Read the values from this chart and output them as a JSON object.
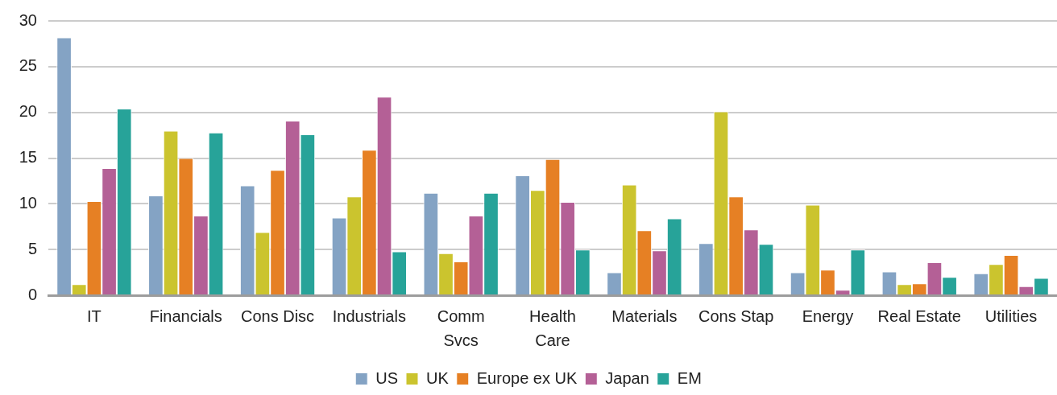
{
  "chart_data": {
    "type": "bar",
    "categories": [
      "IT",
      "Financials",
      "Cons Disc",
      "Industrials",
      "Comm\nSvcs",
      "Health\nCare",
      "Materials",
      "Cons Stap",
      "Energy",
      "Real Estate",
      "Utilities"
    ],
    "series": [
      {
        "name": "US",
        "color": "#84a3c4",
        "values": [
          28.2,
          10.9,
          12.0,
          8.5,
          11.2,
          13.1,
          2.5,
          5.7,
          2.5,
          2.6,
          2.4
        ]
      },
      {
        "name": "UK",
        "color": "#cbc42e",
        "values": [
          1.2,
          18.0,
          6.9,
          10.8,
          4.6,
          11.5,
          12.1,
          20.1,
          9.9,
          1.2,
          3.4
        ]
      },
      {
        "name": "Europe ex UK",
        "color": "#e68024",
        "values": [
          10.3,
          15.0,
          13.7,
          15.9,
          3.7,
          14.9,
          7.1,
          10.8,
          2.8,
          1.3,
          4.4
        ]
      },
      {
        "name": "Japan",
        "color": "#b46096",
        "values": [
          13.9,
          8.7,
          19.1,
          21.7,
          8.7,
          10.2,
          4.9,
          7.2,
          0.6,
          3.6,
          1.0
        ]
      },
      {
        "name": "EM",
        "color": "#27a399",
        "values": [
          20.4,
          17.8,
          17.6,
          4.8,
          11.2,
          5.0,
          8.4,
          5.6,
          5.0,
          2.0,
          1.9
        ]
      }
    ],
    "ylim": [
      0,
      30
    ],
    "yticks": [
      0,
      5,
      10,
      15,
      20,
      25,
      30
    ],
    "grid": "y",
    "legend": "bottom"
  }
}
